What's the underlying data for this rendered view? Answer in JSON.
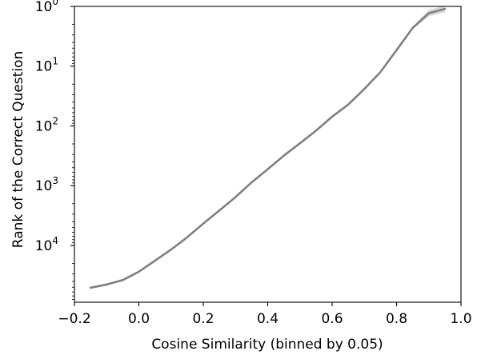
{
  "chart_data": {
    "type": "line",
    "title": "",
    "xlabel": "Cosine Similarity (binned by 0.05)",
    "ylabel": "Rank of the Correct Question",
    "xlim": [
      -0.2,
      1.0
    ],
    "ylim_log10": [
      0,
      4.95
    ],
    "y_scale": "log",
    "y_axis_inverted": true,
    "grid": false,
    "legend": "none",
    "x_ticks": [
      {
        "value": -0.2,
        "label": "−0.2"
      },
      {
        "value": 0.0,
        "label": "0.0"
      },
      {
        "value": 0.2,
        "label": "0.2"
      },
      {
        "value": 0.4,
        "label": "0.4"
      },
      {
        "value": 0.6,
        "label": "0.6"
      },
      {
        "value": 0.8,
        "label": "0.8"
      },
      {
        "value": 1.0,
        "label": "1.0"
      }
    ],
    "y_ticks": [
      {
        "value": 1,
        "base": "10",
        "exp": "0"
      },
      {
        "value": 10,
        "base": "10",
        "exp": "1"
      },
      {
        "value": 100,
        "base": "10",
        "exp": "2"
      },
      {
        "value": 1000,
        "base": "10",
        "exp": "3"
      },
      {
        "value": 10000,
        "base": "10",
        "exp": "4"
      }
    ],
    "series": [
      {
        "color": "#808080",
        "band_color": "#cfcfcf",
        "x": [
          -0.15,
          -0.1,
          -0.05,
          0.0,
          0.05,
          0.1,
          0.15,
          0.2,
          0.25,
          0.3,
          0.35,
          0.4,
          0.45,
          0.5,
          0.55,
          0.6,
          0.65,
          0.7,
          0.75,
          0.8,
          0.85,
          0.9,
          0.95
        ],
        "y": [
          51000,
          45000,
          38000,
          27500,
          18000,
          11700,
          7300,
          4300,
          2600,
          1550,
          880,
          530,
          315,
          195,
          120,
          70,
          44,
          24,
          12.5,
          5.4,
          2.3,
          1.3,
          1.1
        ]
      }
    ]
  }
}
